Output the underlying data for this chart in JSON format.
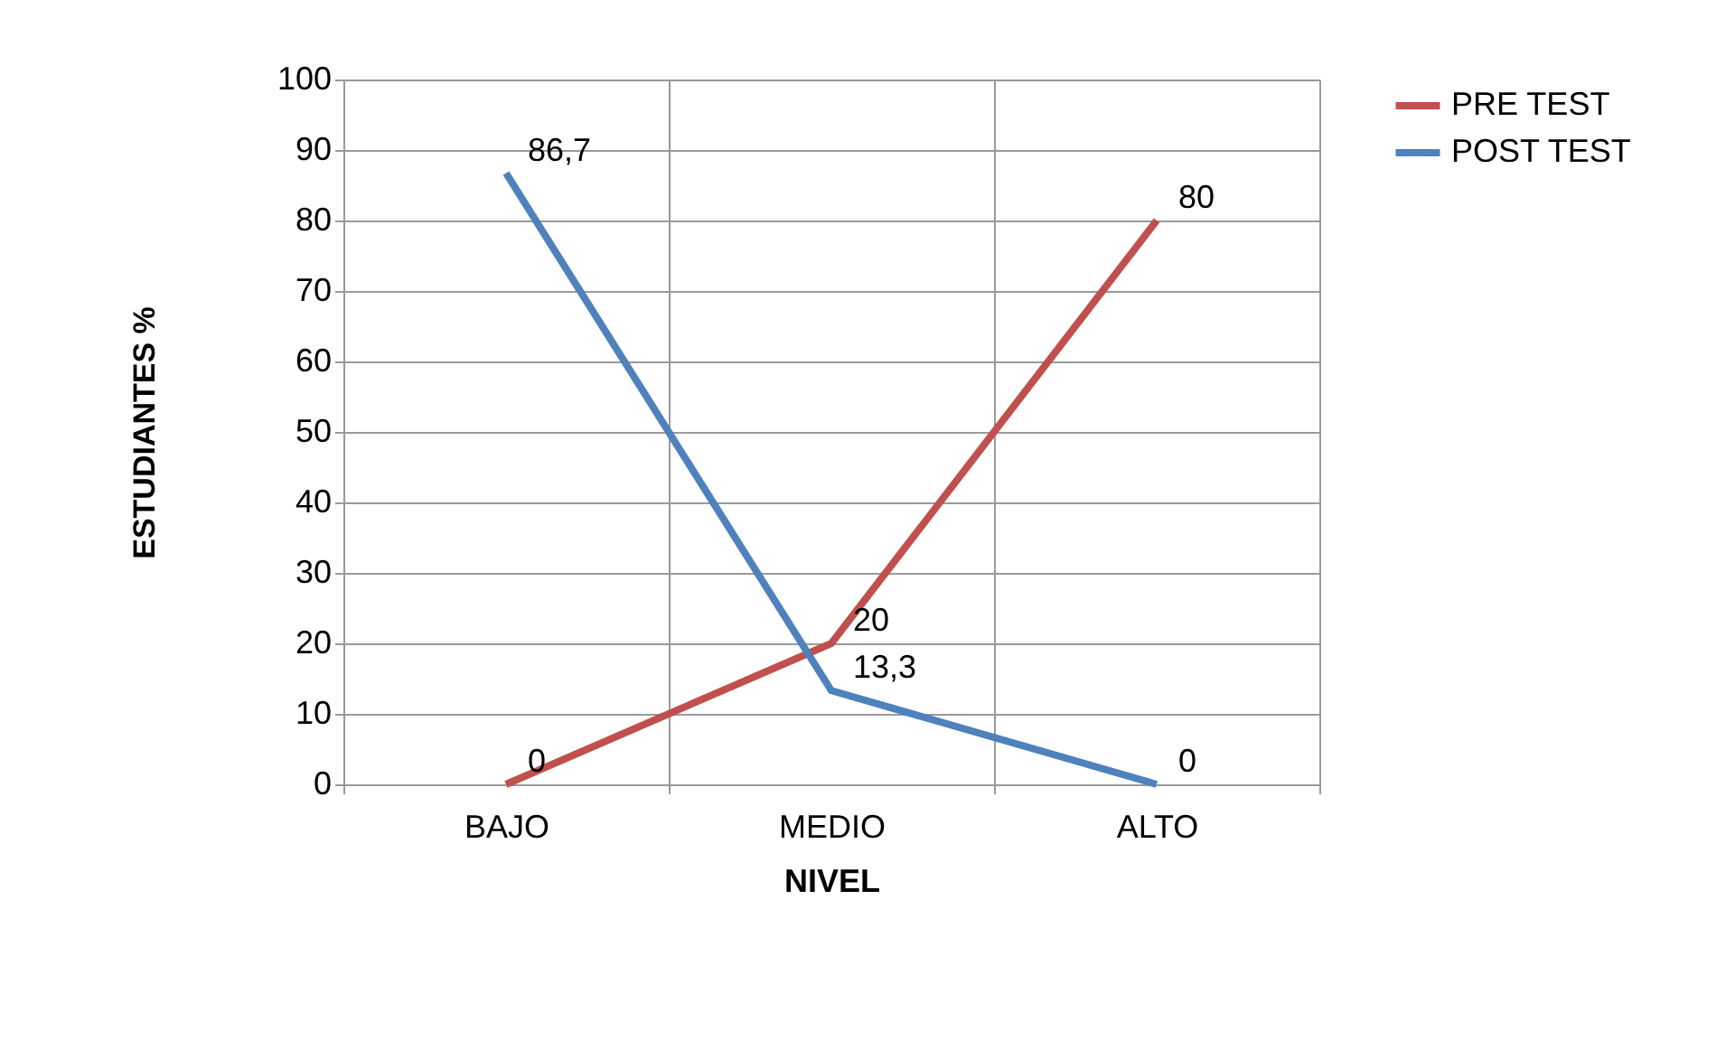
{
  "chart_data": {
    "type": "line",
    "xlabel": "NIVEL",
    "ylabel": "ESTUDIANTES %",
    "categories": [
      "BAJO",
      "MEDIO",
      "ALTO"
    ],
    "series": [
      {
        "name": "PRE TEST",
        "color": "#c0504d",
        "values": [
          0,
          20,
          80
        ],
        "value_labels": [
          "0",
          "20",
          "80"
        ]
      },
      {
        "name": "POST TEST",
        "color": "#4f81bd",
        "values": [
          86.7,
          13.3,
          0
        ],
        "value_labels": [
          "86,7",
          "13,3",
          "0"
        ]
      }
    ],
    "ylim": [
      0,
      100
    ],
    "yticks": [
      0,
      10,
      20,
      30,
      40,
      50,
      60,
      70,
      80,
      90,
      100
    ],
    "grid": true,
    "legend": "right",
    "marker": "none",
    "line_style": "solid"
  }
}
